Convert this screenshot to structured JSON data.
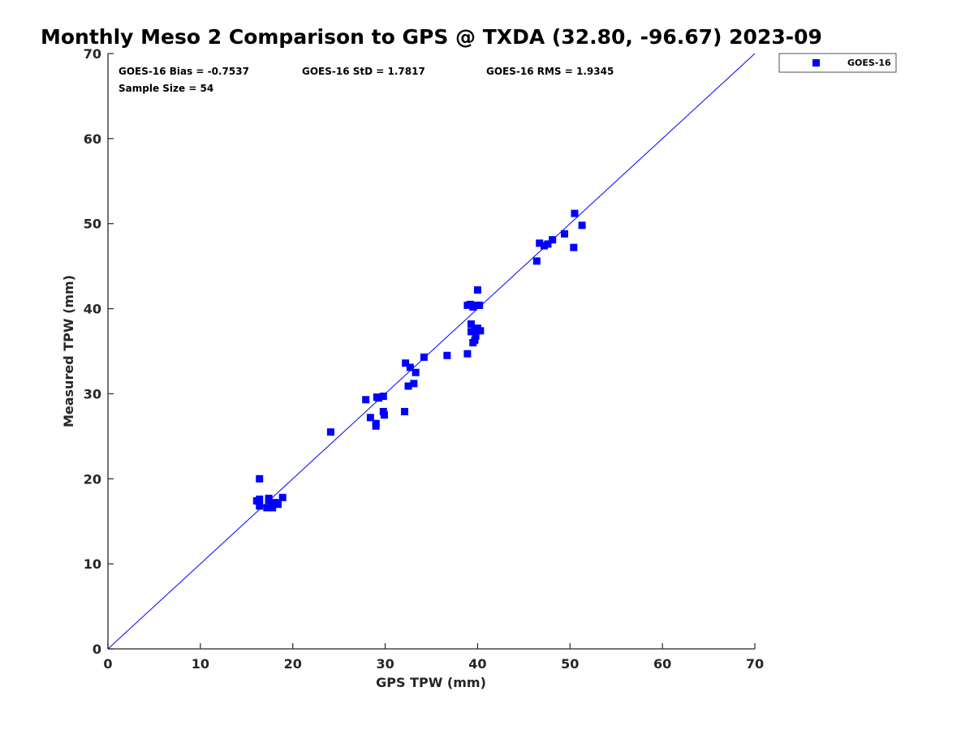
{
  "chart_data": {
    "type": "scatter",
    "title": "Monthly Meso 2 Comparison to GPS @ TXDA (32.80, -96.67) 2023-09",
    "xlabel": "GPS TPW (mm)",
    "ylabel": "Measured TPW (mm)",
    "xlim": [
      0,
      70
    ],
    "ylim": [
      0,
      70
    ],
    "xticks": [
      "0",
      "10",
      "20",
      "30",
      "40",
      "50",
      "60",
      "70"
    ],
    "yticks": [
      "0",
      "10",
      "20",
      "30",
      "40",
      "50",
      "60",
      "70"
    ],
    "grid": false,
    "legend_position": "top-right",
    "reference_line": {
      "type": "1:1",
      "color": "#0000ff"
    },
    "stats": {
      "bias": "GOES-16 Bias = -0.7537",
      "std": "GOES-16 StD = 1.7817",
      "rms": "GOES-16 RMS = 1.9345",
      "sample": "Sample Size = 54"
    },
    "series": [
      {
        "name": "GOES-16",
        "color": "#0000ff",
        "marker": "square",
        "points": [
          [
            16.4,
            20.0
          ],
          [
            16.1,
            17.4
          ],
          [
            16.4,
            17.6
          ],
          [
            16.4,
            16.8
          ],
          [
            17.2,
            16.6
          ],
          [
            17.4,
            17.5
          ],
          [
            17.4,
            17.7
          ],
          [
            17.8,
            16.6
          ],
          [
            18.1,
            17.2
          ],
          [
            18.4,
            17.0
          ],
          [
            18.9,
            17.8
          ],
          [
            17.6,
            17.1
          ],
          [
            24.1,
            25.5
          ],
          [
            27.9,
            29.3
          ],
          [
            28.4,
            27.2
          ],
          [
            29.0,
            26.2
          ],
          [
            29.0,
            26.5
          ],
          [
            29.1,
            29.6
          ],
          [
            29.3,
            29.5
          ],
          [
            29.8,
            29.7
          ],
          [
            29.8,
            27.9
          ],
          [
            29.9,
            27.5
          ],
          [
            32.1,
            27.9
          ],
          [
            32.2,
            33.6
          ],
          [
            32.5,
            30.9
          ],
          [
            32.7,
            33.1
          ],
          [
            33.1,
            31.2
          ],
          [
            33.3,
            32.5
          ],
          [
            34.2,
            34.3
          ],
          [
            36.7,
            34.5
          ],
          [
            38.9,
            40.4
          ],
          [
            38.9,
            34.7
          ],
          [
            39.2,
            40.5
          ],
          [
            39.3,
            37.3
          ],
          [
            39.3,
            38.2
          ],
          [
            39.5,
            36.0
          ],
          [
            39.5,
            40.2
          ],
          [
            39.7,
            37.4
          ],
          [
            39.7,
            36.3
          ],
          [
            39.8,
            36.8
          ],
          [
            39.9,
            40.4
          ],
          [
            40.0,
            42.2
          ],
          [
            40.0,
            37.7
          ],
          [
            40.2,
            40.4
          ],
          [
            40.3,
            37.4
          ],
          [
            46.4,
            45.6
          ],
          [
            46.7,
            47.7
          ],
          [
            47.2,
            47.4
          ],
          [
            47.6,
            47.6
          ],
          [
            48.1,
            48.1
          ],
          [
            49.4,
            48.8
          ],
          [
            50.4,
            47.2
          ],
          [
            50.5,
            51.2
          ],
          [
            51.3,
            49.8
          ]
        ]
      }
    ]
  }
}
